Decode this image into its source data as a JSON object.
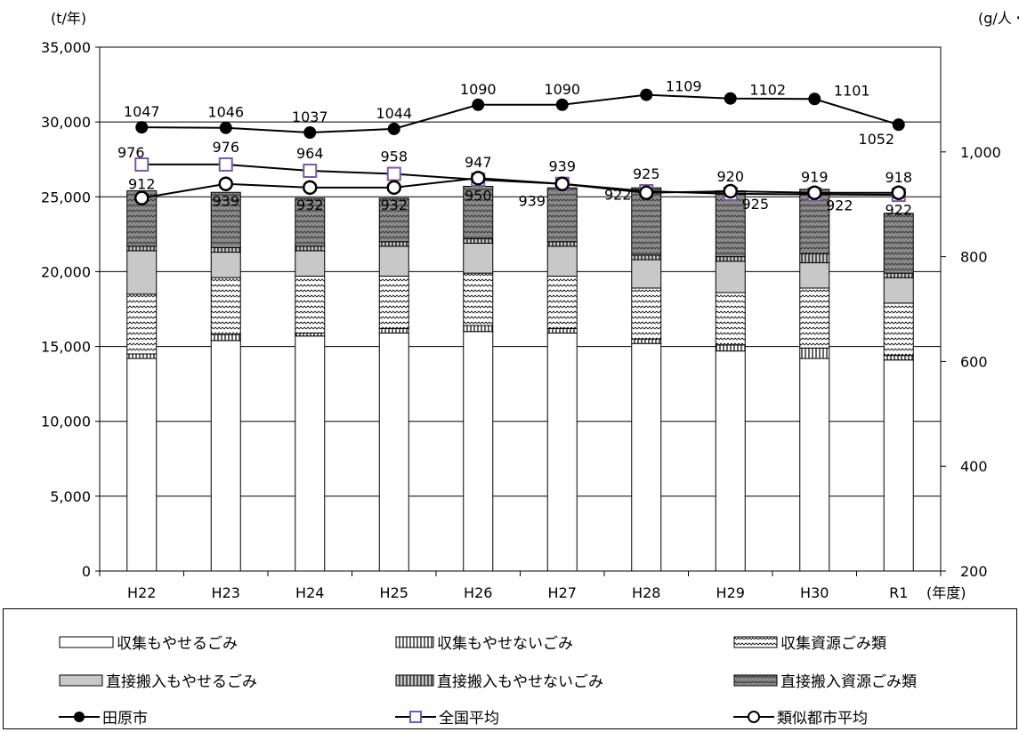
{
  "chart_data": {
    "type": "bar",
    "stacked": true,
    "left_axis_unit": "(t/年)",
    "right_axis_unit": "(g/人・日)",
    "x_axis_unit": "(年度)",
    "categories": [
      "H22",
      "H23",
      "H24",
      "H25",
      "H26",
      "H27",
      "H28",
      "H29",
      "H30",
      "R1"
    ],
    "y_left": {
      "min": 0,
      "max": 35000,
      "ticks": [
        "0",
        "5,000",
        "10,000",
        "15,000",
        "20,000",
        "25,000",
        "30,000",
        "35,000"
      ]
    },
    "y_right": {
      "min": 200,
      "max": 1200,
      "ticks": [
        "200",
        "400",
        "600",
        "800",
        "1,000"
      ]
    },
    "bar_series": [
      {
        "name": "収集もやせるごみ",
        "pattern": "white",
        "values": [
          14200,
          15400,
          15700,
          15900,
          16000,
          15900,
          15200,
          14700,
          14200,
          14100
        ]
      },
      {
        "name": "収集もやせないごみ",
        "pattern": "vstripe",
        "values": [
          300,
          400,
          200,
          300,
          400,
          300,
          300,
          400,
          700,
          300
        ]
      },
      {
        "name": "収集資源ごみ類",
        "pattern": "wave",
        "values": [
          4000,
          3800,
          3800,
          3500,
          3500,
          3500,
          3400,
          3500,
          4000,
          3500
        ]
      },
      {
        "name": "直接搬入もやせるごみ",
        "pattern": "gray",
        "values": [
          2900,
          1700,
          1700,
          2000,
          2000,
          2000,
          1900,
          2100,
          1700,
          1700
        ]
      },
      {
        "name": "直接搬入もやせないごみ",
        "pattern": "vstripe_gray",
        "values": [
          300,
          300,
          300,
          300,
          300,
          300,
          300,
          300,
          600,
          300
        ]
      },
      {
        "name": "直接搬入資源ごみ類",
        "pattern": "wave_gray",
        "values": [
          3700,
          3700,
          3200,
          2900,
          3500,
          3600,
          4500,
          4400,
          4300,
          4000
        ]
      }
    ],
    "line_series": [
      {
        "name": "田原市",
        "marker": "filled-circle",
        "values": [
          1047,
          1046,
          1037,
          1044,
          1090,
          1090,
          1109,
          1102,
          1101,
          1052
        ],
        "labels": [
          "1047",
          "1046",
          "1037",
          "1044",
          "1090",
          "1090",
          "1109",
          "1102",
          "1101",
          "1052"
        ]
      },
      {
        "name": "全国平均",
        "marker": "square",
        "values": [
          976,
          976,
          964,
          958,
          947,
          939,
          925,
          920,
          919,
          918
        ],
        "labels": [
          "976",
          "976",
          "964",
          "958",
          "947",
          "939",
          "925",
          "920",
          "919",
          "918"
        ]
      },
      {
        "name": "類似都市平均",
        "marker": "open-circle",
        "values": [
          912,
          939,
          932,
          932,
          950,
          939,
          922,
          925,
          922,
          922
        ],
        "labels": [
          "912",
          "939",
          "932",
          "932",
          "950",
          "939",
          "922",
          "925",
          "922",
          "922"
        ]
      }
    ],
    "grid": true
  }
}
